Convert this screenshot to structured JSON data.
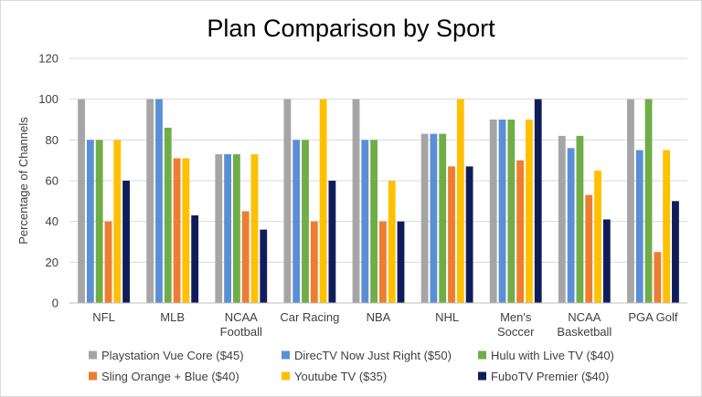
{
  "chart_data": {
    "type": "bar",
    "title": "Plan Comparison by Sport",
    "xlabel": "",
    "ylabel": "Percentage of Channels",
    "ylim": [
      0,
      120
    ],
    "yticks": [
      0,
      20,
      40,
      60,
      80,
      100,
      120
    ],
    "grid": true,
    "legend_position": "bottom",
    "categories": [
      [
        "NFL"
      ],
      [
        "MLB"
      ],
      [
        "NCAA",
        "Football"
      ],
      [
        "Car Racing"
      ],
      [
        "NBA"
      ],
      [
        "NHL"
      ],
      [
        "Men's",
        "Soccer"
      ],
      [
        "NCAA",
        "Basketball"
      ],
      [
        "PGA Golf"
      ]
    ],
    "series": [
      {
        "name": "Playstation Vue Core ($45)",
        "color": "#a5a5a5",
        "values": [
          100,
          100,
          73,
          100,
          100,
          83,
          90,
          82,
          100
        ]
      },
      {
        "name": "DirecTV Now Just Right ($50)",
        "color": "#5b8fd5",
        "values": [
          80,
          100,
          73,
          80,
          80,
          83,
          90,
          76,
          75
        ]
      },
      {
        "name": "Hulu with Live TV ($40)",
        "color": "#70ad47",
        "values": [
          80,
          86,
          73,
          80,
          80,
          83,
          90,
          82,
          100
        ]
      },
      {
        "name": "Sling Orange + Blue ($40)",
        "color": "#ed7d31",
        "values": [
          40,
          71,
          45,
          40,
          40,
          67,
          70,
          53,
          25
        ]
      },
      {
        "name": "Youtube TV ($35)",
        "color": "#ffc000",
        "values": [
          80,
          71,
          73,
          100,
          60,
          100,
          90,
          65,
          75
        ]
      },
      {
        "name": "FuboTV Premier ($40)",
        "color": "#0f1e5a",
        "values": [
          60,
          43,
          36,
          60,
          40,
          67,
          100,
          41,
          50
        ]
      }
    ]
  }
}
